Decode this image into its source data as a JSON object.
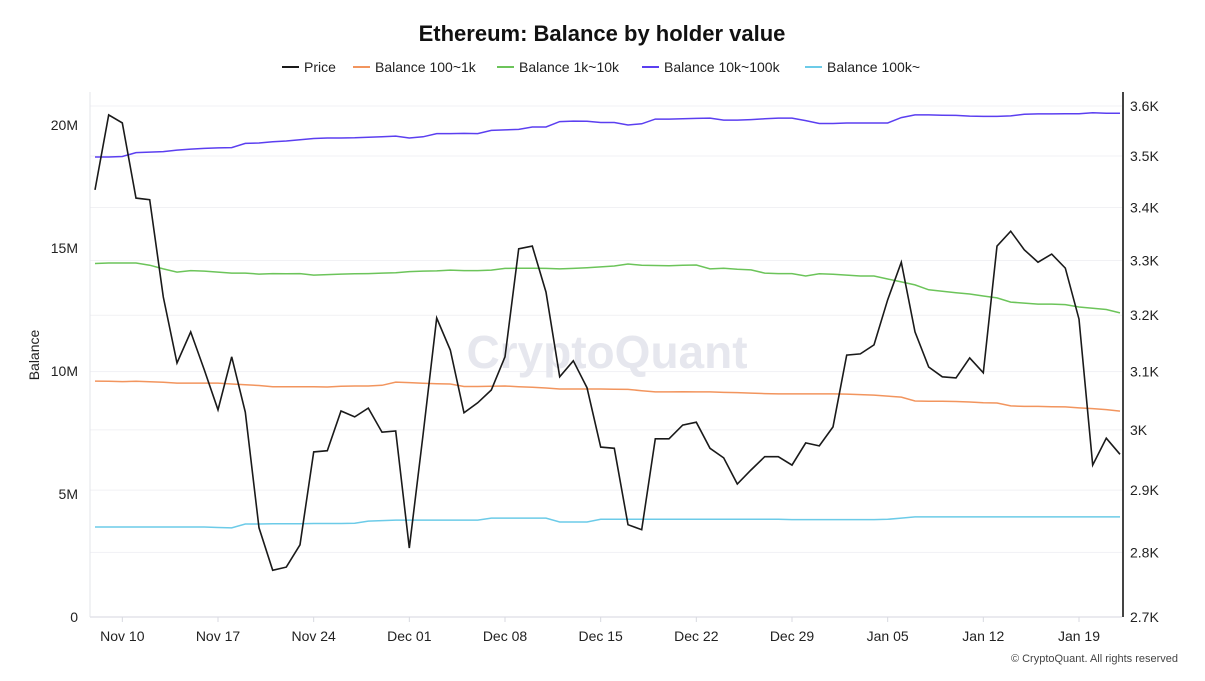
{
  "chart_data": {
    "type": "line",
    "title": "Ethereum: Balance by holder value",
    "ylabel": "Balance",
    "y2label": "",
    "watermark": "CryptoQuant",
    "footer": "© CryptoQuant. All rights reserved",
    "x_start_date": "Nov 08",
    "x_step_days": 1,
    "x_tick_labels": [
      {
        "label": "Nov 10",
        "index": 2
      },
      {
        "label": "Nov 17",
        "index": 9
      },
      {
        "label": "Nov 24",
        "index": 16
      },
      {
        "label": "Dec 01",
        "index": 23
      },
      {
        "label": "Dec 08",
        "index": 30
      },
      {
        "label": "Dec 15",
        "index": 37
      },
      {
        "label": "Dec 22",
        "index": 44
      },
      {
        "label": "Dec 29",
        "index": 51
      },
      {
        "label": "Jan 05",
        "index": 58
      },
      {
        "label": "Jan 12",
        "index": 65
      },
      {
        "label": "Jan 19",
        "index": 72
      }
    ],
    "y_left": {
      "ylim": [
        0,
        21.3
      ],
      "unit": "M",
      "ticks": [
        {
          "v": 0,
          "label": "0"
        },
        {
          "v": 5,
          "label": "5M"
        },
        {
          "v": 10,
          "label": "10M"
        },
        {
          "v": 15,
          "label": "15M"
        },
        {
          "v": 20,
          "label": "20M"
        }
      ]
    },
    "y_right": {
      "scale": "log",
      "ylim": [
        2700,
        3600
      ],
      "ticks": [
        {
          "v": 2700,
          "label": "2.7K"
        },
        {
          "v": 2800,
          "label": "2.8K"
        },
        {
          "v": 2900,
          "label": "2.9K"
        },
        {
          "v": 3000,
          "label": "3K"
        },
        {
          "v": 3100,
          "label": "3.1K"
        },
        {
          "v": 3200,
          "label": "3.2K"
        },
        {
          "v": 3300,
          "label": "3.3K"
        },
        {
          "v": 3400,
          "label": "3.4K"
        },
        {
          "v": 3500,
          "label": "3.5K"
        },
        {
          "v": 3600,
          "label": "3.6K"
        }
      ]
    },
    "grid": true,
    "legend_position": "top-center",
    "series": [
      {
        "name": "Price",
        "axis": "right",
        "color": "#1a1a1a",
        "values": [
          3434,
          3582,
          3566,
          3418,
          3415,
          3233,
          3115,
          3170,
          3103,
          3034,
          3126,
          3030,
          2839,
          2772,
          2777,
          2812,
          2963,
          2965,
          3032,
          3022,
          3037,
          2996,
          2998,
          2807,
          2991,
          3195,
          3138,
          3029,
          3046,
          3068,
          3126,
          3322,
          3327,
          3242,
          3091,
          3119,
          3072,
          2971,
          2969,
          2844,
          2836,
          2985,
          2985,
          3008,
          3013,
          2969,
          2953,
          2910,
          2933,
          2955,
          2955,
          2941,
          2978,
          2973,
          3005,
          3129,
          3131,
          3147,
          3228,
          3297,
          3170,
          3108,
          3091,
          3089,
          3124,
          3098,
          3327,
          3355,
          3320,
          3297,
          3312,
          3286,
          3193,
          2941,
          2986,
          2959
        ]
      },
      {
        "name": "Balance 100~1k",
        "axis": "left",
        "color": "#f2955e",
        "values": [
          9.59,
          9.58,
          9.57,
          9.58,
          9.56,
          9.54,
          9.51,
          9.51,
          9.51,
          9.51,
          9.47,
          9.44,
          9.41,
          9.36,
          9.36,
          9.36,
          9.36,
          9.35,
          9.38,
          9.39,
          9.39,
          9.42,
          9.55,
          9.53,
          9.5,
          9.48,
          9.47,
          9.37,
          9.37,
          9.38,
          9.39,
          9.36,
          9.34,
          9.31,
          9.27,
          9.27,
          9.27,
          9.27,
          9.26,
          9.25,
          9.2,
          9.15,
          9.15,
          9.16,
          9.15,
          9.15,
          9.13,
          9.12,
          9.1,
          9.08,
          9.07,
          9.07,
          9.07,
          9.07,
          9.07,
          9.06,
          9.04,
          9.02,
          8.98,
          8.94,
          8.78,
          8.77,
          8.77,
          8.76,
          8.74,
          8.71,
          8.7,
          8.58,
          8.56,
          8.56,
          8.55,
          8.54,
          8.5,
          8.47,
          8.43,
          8.37
        ]
      },
      {
        "name": "Balance 1k~10k",
        "axis": "left",
        "color": "#6cc45a",
        "values": [
          14.37,
          14.39,
          14.39,
          14.39,
          14.3,
          14.15,
          14.02,
          14.08,
          14.06,
          14.02,
          13.98,
          13.98,
          13.94,
          13.96,
          13.95,
          13.96,
          13.9,
          13.92,
          13.94,
          13.95,
          13.96,
          13.98,
          13.99,
          14.04,
          14.06,
          14.07,
          14.1,
          14.08,
          14.08,
          14.1,
          14.17,
          14.18,
          14.18,
          14.17,
          14.15,
          14.17,
          14.2,
          14.23,
          14.27,
          14.35,
          14.3,
          14.29,
          14.28,
          14.3,
          14.31,
          14.15,
          14.18,
          14.14,
          14.11,
          13.98,
          13.96,
          13.96,
          13.86,
          13.95,
          13.93,
          13.9,
          13.86,
          13.86,
          13.74,
          13.62,
          13.5,
          13.3,
          13.24,
          13.18,
          13.13,
          13.05,
          12.97,
          12.8,
          12.76,
          12.72,
          12.72,
          12.7,
          12.6,
          12.55,
          12.5,
          12.36
        ]
      },
      {
        "name": "Balance 10k~100k",
        "axis": "left",
        "color": "#5b3ff0",
        "values": [
          18.7,
          18.7,
          18.72,
          18.88,
          18.9,
          18.92,
          18.98,
          19.02,
          19.05,
          19.07,
          19.08,
          19.25,
          19.27,
          19.32,
          19.35,
          19.4,
          19.45,
          19.47,
          19.47,
          19.48,
          19.5,
          19.52,
          19.55,
          19.47,
          19.52,
          19.65,
          19.65,
          19.66,
          19.65,
          19.78,
          19.8,
          19.82,
          19.92,
          19.92,
          20.14,
          20.16,
          20.15,
          20.1,
          20.1,
          20.0,
          20.05,
          20.24,
          20.24,
          20.25,
          20.27,
          20.28,
          20.2,
          20.2,
          20.22,
          20.25,
          20.28,
          20.28,
          20.18,
          20.06,
          20.06,
          20.08,
          20.08,
          20.08,
          20.08,
          20.3,
          20.41,
          20.41,
          20.4,
          20.39,
          20.36,
          20.35,
          20.35,
          20.37,
          20.44,
          20.45,
          20.45,
          20.46,
          20.46,
          20.5,
          20.48,
          20.48
        ]
      },
      {
        "name": "Balance 100k~",
        "axis": "left",
        "color": "#6ccbe8",
        "values": [
          3.66,
          3.66,
          3.66,
          3.66,
          3.66,
          3.66,
          3.66,
          3.66,
          3.66,
          3.64,
          3.62,
          3.78,
          3.78,
          3.79,
          3.79,
          3.79,
          3.8,
          3.8,
          3.8,
          3.81,
          3.9,
          3.92,
          3.94,
          3.94,
          3.94,
          3.94,
          3.94,
          3.94,
          3.94,
          4.02,
          4.02,
          4.02,
          4.02,
          4.02,
          3.86,
          3.86,
          3.86,
          3.97,
          3.97,
          3.97,
          3.97,
          3.97,
          3.97,
          3.97,
          3.97,
          3.97,
          3.97,
          3.97,
          3.97,
          3.97,
          3.97,
          3.96,
          3.96,
          3.96,
          3.96,
          3.96,
          3.96,
          3.96,
          3.97,
          4.02,
          4.07,
          4.07,
          4.07,
          4.07,
          4.07,
          4.07,
          4.07,
          4.07,
          4.07,
          4.07,
          4.07,
          4.07,
          4.07,
          4.07,
          4.07,
          4.07
        ]
      }
    ]
  }
}
